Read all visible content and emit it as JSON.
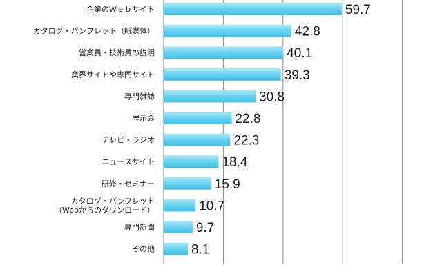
{
  "chart_data": {
    "type": "bar",
    "orientation": "horizontal",
    "categories": [
      "企業のＷｅｂサイト",
      "カタログ・パンフレット（紙媒体）",
      "営業員・技術員の説明",
      "業界サイトや専門サイト",
      "専門雑誌",
      "展示会",
      "テレビ・ラジオ",
      "ニュースサイト",
      "研修・セミナー",
      "カタログ・パンフレット\n（Webからのダウンロード）",
      "専門新聞",
      "その他"
    ],
    "values": [
      59.7,
      42.8,
      40.1,
      39.3,
      30.8,
      22.8,
      22.3,
      18.4,
      15.9,
      10.7,
      9.7,
      8.1
    ],
    "value_labels": [
      "59.7",
      "42.8",
      "40.1",
      "39.3",
      "30.8",
      "22.8",
      "22.3",
      "18.4",
      "15.9",
      "10.7",
      "9.7",
      "8.1"
    ],
    "xlim": [
      0,
      100
    ],
    "grid": true,
    "bar_color_top": "#aee8f8",
    "bar_color_bottom": "#3fc0e8"
  }
}
